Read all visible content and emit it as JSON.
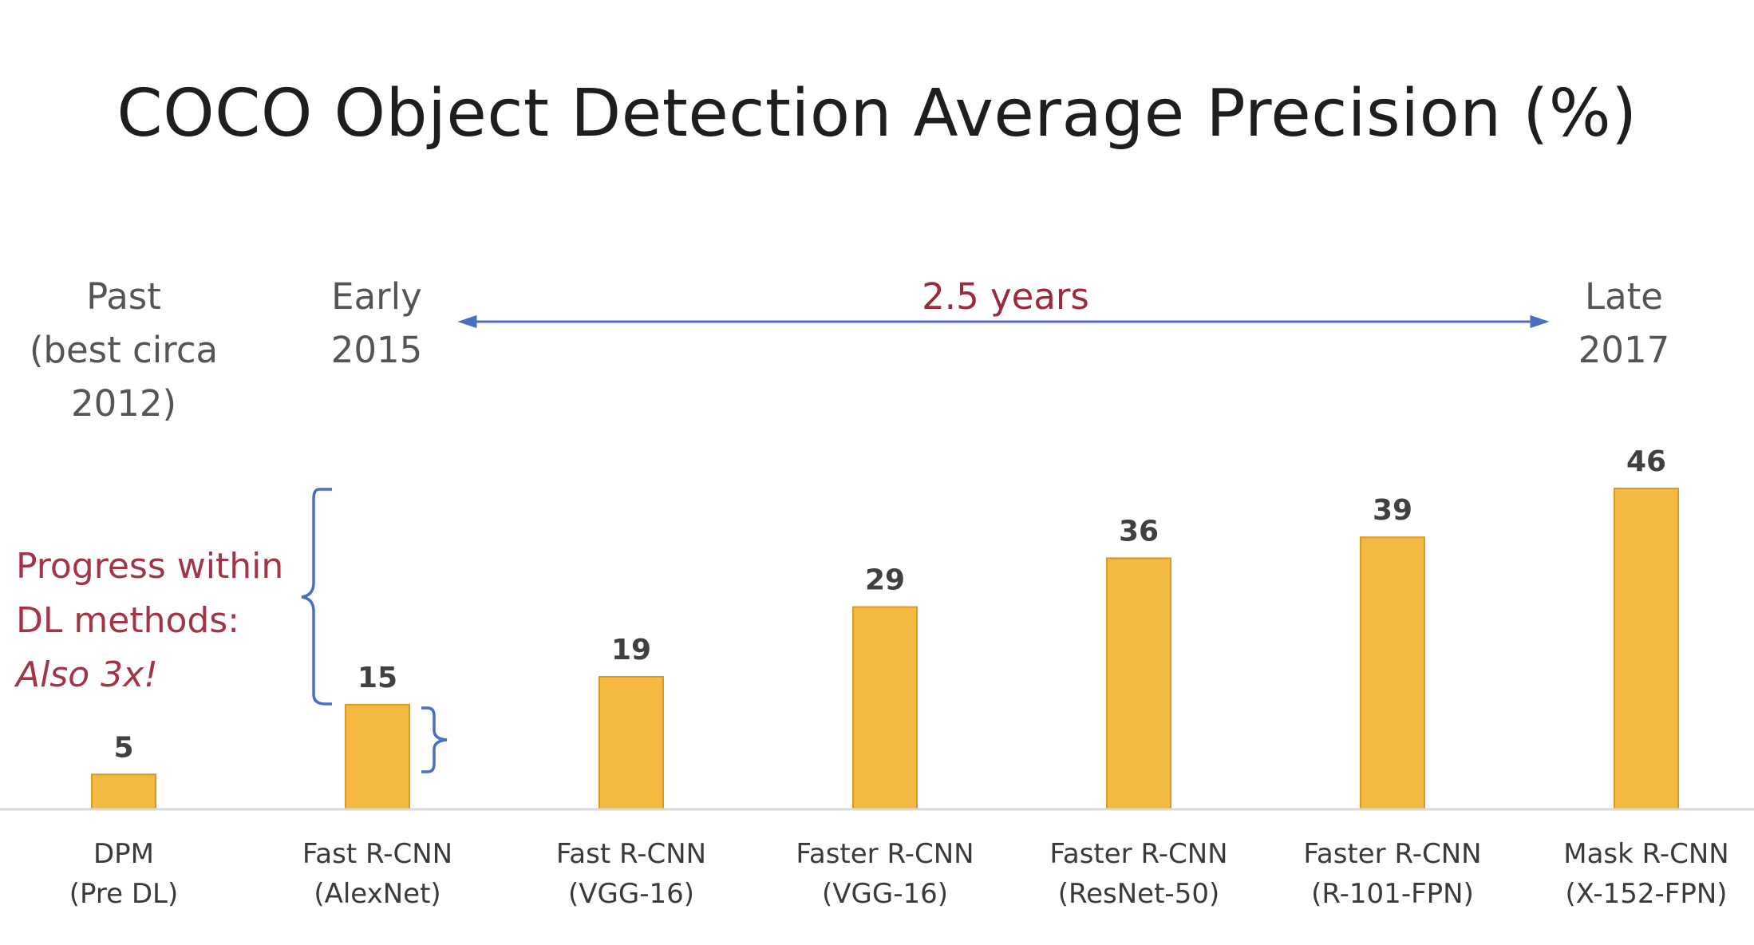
{
  "chart_data": {
    "type": "bar",
    "title": "COCO Object Detection Average Precision (%)",
    "categories": [
      [
        "DPM",
        "(Pre DL)"
      ],
      [
        "Fast R-CNN",
        "(AlexNet)"
      ],
      [
        "Fast R-CNN",
        "(VGG-16)"
      ],
      [
        "Faster R-CNN",
        "(VGG-16)"
      ],
      [
        "Faster R-CNN",
        "(ResNet-50)"
      ],
      [
        "Faster R-CNN",
        "(R-101-FPN)"
      ],
      [
        "Mask R-CNN",
        "(X-152-FPN)"
      ]
    ],
    "values": [
      5,
      15,
      19,
      29,
      36,
      39,
      46
    ],
    "data_labels": [
      "5",
      "15",
      "19",
      "29",
      "36",
      "39",
      "46"
    ],
    "bar_color": "#f4b942",
    "bar_edge_color": "#d99a1f",
    "ylim": [
      0,
      48
    ],
    "grid": false,
    "xlabel": "",
    "ylabel": "",
    "annotations": {
      "era_past": [
        "Past",
        "(best circa",
        "2012)"
      ],
      "era_early": [
        "Early",
        "2015"
      ],
      "era_late": [
        "Late",
        "2017"
      ],
      "span_label": "2.5 years",
      "progress": [
        "Progress within",
        "DL methods:",
        "Also 3x!"
      ]
    },
    "colors": {
      "annotation_red": "#a33445",
      "arrow_blue": "#4a6fc0"
    }
  }
}
